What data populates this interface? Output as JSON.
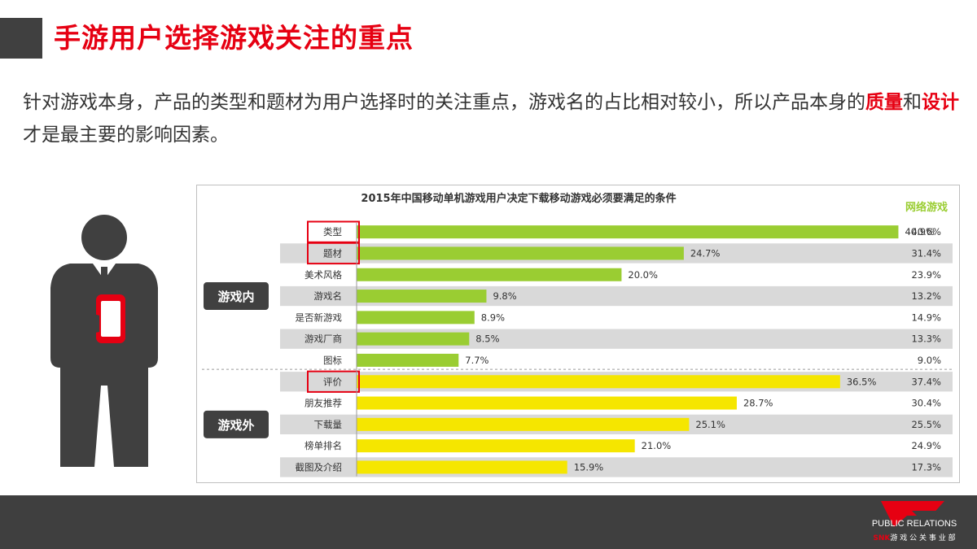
{
  "slide": {
    "title": "手游用户选择游戏关注的重点",
    "intro": {
      "part1": "针对游戏本身，产品的类型和题材为用户选择时的关注重点，游戏名的占比相对较小，所以产品本身的",
      "highlight1": "质量",
      "part2": "和",
      "highlight2": "设计",
      "part3": "才是最主要的影响因素。"
    }
  },
  "footer": {
    "brand": "PUBLIC RELATIONS",
    "sub_brand_red": "SNK",
    "sub_brand": "游 戏 公 关 事 业 部"
  },
  "colors": {
    "accent": "#e60012",
    "bar_in": "#9acd32",
    "bar_out": "#f5e600",
    "row_alt": "#d9d9d9",
    "group_label_bg": "#404040"
  },
  "chart_data": {
    "type": "bar",
    "orientation": "horizontal",
    "title": "2015年中国移动单机游戏用户决定下载移动游戏必须要满足的条件",
    "comparison_header": "网络游戏",
    "groups": [
      {
        "label": "游戏内",
        "items": [
          {
            "label": "类型",
            "value": 40.9,
            "online": 40.6,
            "highlighted": true
          },
          {
            "label": "题材",
            "value": 24.7,
            "online": 31.4,
            "highlighted": true
          },
          {
            "label": "美术风格",
            "value": 20.0,
            "online": 23.9,
            "highlighted": false
          },
          {
            "label": "游戏名",
            "value": 9.8,
            "online": 13.2,
            "highlighted": false
          },
          {
            "label": "是否新游戏",
            "value": 8.9,
            "online": 14.9,
            "highlighted": false
          },
          {
            "label": "游戏厂商",
            "value": 8.5,
            "online": 13.3,
            "highlighted": false
          },
          {
            "label": "图标",
            "value": 7.7,
            "online": 9.0,
            "highlighted": false
          }
        ]
      },
      {
        "label": "游戏外",
        "items": [
          {
            "label": "评价",
            "value": 36.5,
            "online": 37.4,
            "highlighted": true
          },
          {
            "label": "朋友推荐",
            "value": 28.7,
            "online": 30.4,
            "highlighted": false
          },
          {
            "label": "下载量",
            "value": 25.1,
            "online": 25.5,
            "highlighted": false
          },
          {
            "label": "榜单排名",
            "value": 21.0,
            "online": 24.9,
            "highlighted": false
          },
          {
            "label": "截图及介绍",
            "value": 15.9,
            "online": 17.3,
            "highlighted": false
          }
        ]
      }
    ],
    "xlim": [
      0,
      45
    ],
    "grid": false,
    "legend": "none"
  }
}
